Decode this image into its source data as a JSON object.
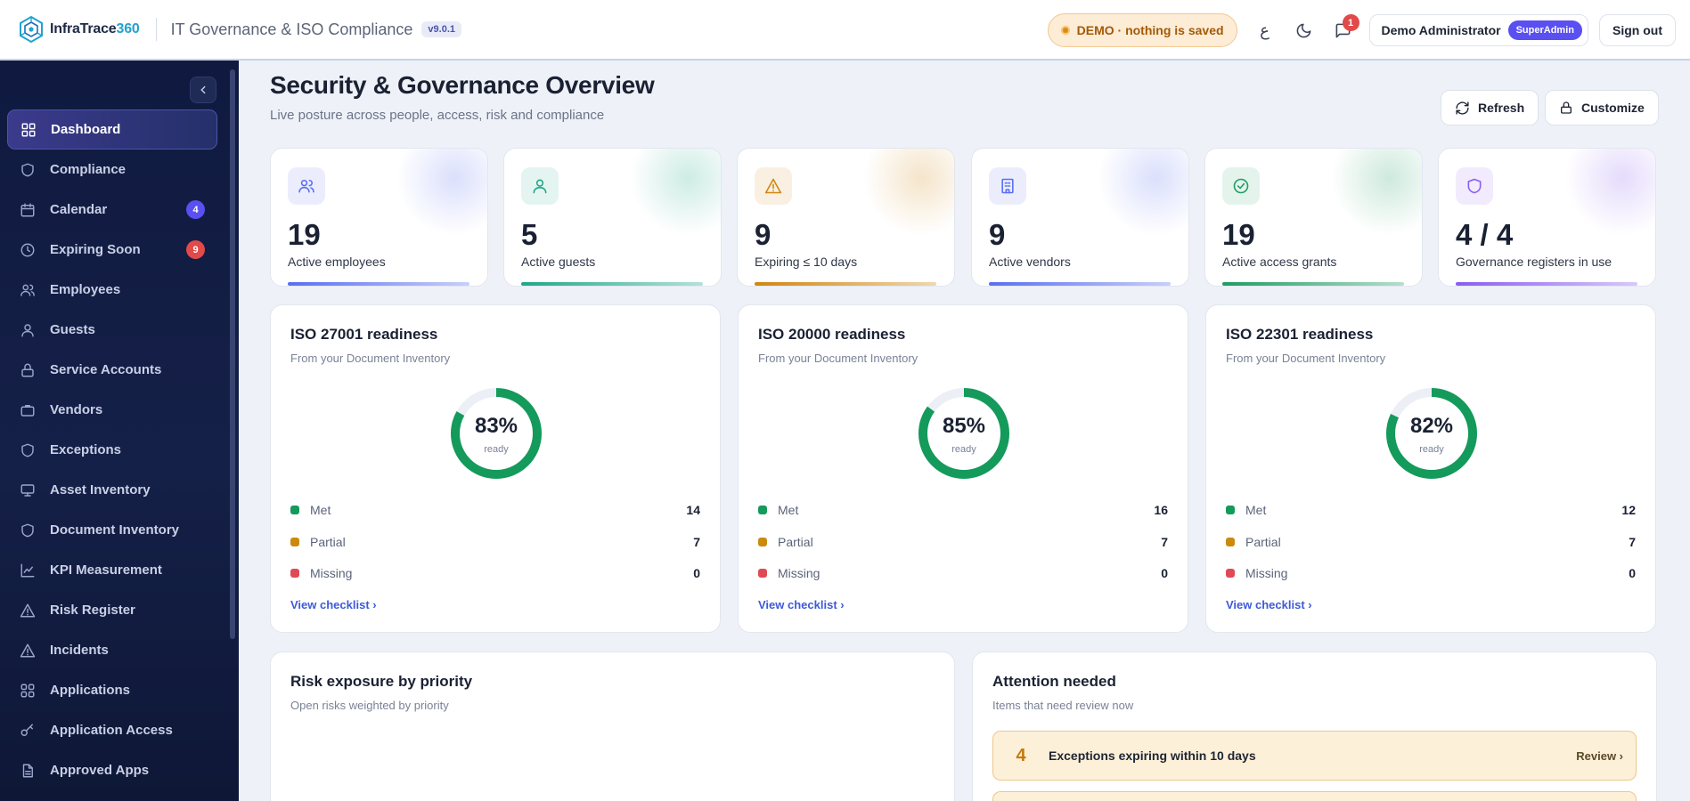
{
  "brand": {
    "name_a": "InfraTrace",
    "name_b": "360",
    "app_title": "IT Governance & ISO Compliance",
    "version": "v9.0.1"
  },
  "topbar": {
    "demo_label": "DEMO · nothing is saved",
    "lang_glyph": "ع",
    "notifications": "1",
    "user_name": "Demo Administrator",
    "role": "SuperAdmin",
    "signout_label": "Sign out"
  },
  "sidebar": {
    "items": [
      {
        "label": "Dashboard",
        "icon": "dashboard-icon",
        "active": true
      },
      {
        "label": "Compliance",
        "icon": "shield-icon"
      },
      {
        "label": "Calendar",
        "icon": "calendar-icon",
        "count": "4",
        "count_color": "#5a4ff0"
      },
      {
        "label": "Expiring Soon",
        "icon": "clock-icon",
        "count": "9",
        "count_color": "#e04a4a"
      },
      {
        "label": "Employees",
        "icon": "users-icon"
      },
      {
        "label": "Guests",
        "icon": "user-icon"
      },
      {
        "label": "Service Accounts",
        "icon": "lock-icon"
      },
      {
        "label": "Vendors",
        "icon": "briefcase-icon"
      },
      {
        "label": "Exceptions",
        "icon": "shield-icon"
      },
      {
        "label": "Asset Inventory",
        "icon": "monitor-icon"
      },
      {
        "label": "Document Inventory",
        "icon": "shield-icon"
      },
      {
        "label": "KPI Measurement",
        "icon": "chart-line-icon"
      },
      {
        "label": "Risk Register",
        "icon": "warning-icon"
      },
      {
        "label": "Incidents",
        "icon": "warning-icon"
      },
      {
        "label": "Applications",
        "icon": "apps-icon"
      },
      {
        "label": "Application Access",
        "icon": "key-icon"
      },
      {
        "label": "Approved Apps",
        "icon": "document-icon"
      }
    ]
  },
  "header": {
    "title": "Security & Governance Overview",
    "subtitle": "Live posture across people, access, risk and compliance",
    "refresh_label": "Refresh",
    "customize_label": "Customize"
  },
  "kpis": [
    {
      "value": "19",
      "label": "Active employees",
      "icon": "users-icon",
      "color": "#5a6ff0"
    },
    {
      "value": "5",
      "label": "Active guests",
      "icon": "user-icon",
      "color": "#1ea889"
    },
    {
      "value": "9",
      "label": "Expiring ≤ 10 days",
      "icon": "warning-icon",
      "color": "#d1860f"
    },
    {
      "value": "9",
      "label": "Active vendors",
      "icon": "building-icon",
      "color": "#5a6ff0"
    },
    {
      "value": "19",
      "label": "Active access grants",
      "icon": "check-circle-icon",
      "color": "#1f9d63"
    },
    {
      "value": "4 / 4",
      "label": "Governance registers in use",
      "icon": "shield-icon",
      "color": "#8a5cf0"
    }
  ],
  "iso": [
    {
      "title": "ISO 27001 readiness",
      "subtitle": "From your Document Inventory",
      "percent": 83,
      "pct_label": "83%",
      "caption": "ready",
      "rows": [
        {
          "name": "Met",
          "value": "14"
        },
        {
          "name": "Partial",
          "value": "7"
        },
        {
          "name": "Missing",
          "value": "0"
        }
      ],
      "link": "View checklist ›"
    },
    {
      "title": "ISO 20000 readiness",
      "subtitle": "From your Document Inventory",
      "percent": 85,
      "pct_label": "85%",
      "caption": "ready",
      "rows": [
        {
          "name": "Met",
          "value": "16"
        },
        {
          "name": "Partial",
          "value": "7"
        },
        {
          "name": "Missing",
          "value": "0"
        }
      ],
      "link": "View checklist ›"
    },
    {
      "title": "ISO 22301 readiness",
      "subtitle": "From your Document Inventory",
      "percent": 82,
      "pct_label": "82%",
      "caption": "ready",
      "rows": [
        {
          "name": "Met",
          "value": "12"
        },
        {
          "name": "Partial",
          "value": "7"
        },
        {
          "name": "Missing",
          "value": "0"
        }
      ],
      "link": "View checklist ›"
    }
  ],
  "status_colors": {
    "met": "#149a5b",
    "partial": "#c98a0e",
    "missing": "#e04a55"
  },
  "risk_panel": {
    "title": "Risk exposure by priority",
    "subtitle": "Open risks weighted by priority"
  },
  "attention_panel": {
    "title": "Attention needed",
    "subtitle": "Items that need review now",
    "items": [
      {
        "count": "4",
        "text": "Exceptions expiring within 10 days",
        "link": "Review ›"
      }
    ]
  }
}
